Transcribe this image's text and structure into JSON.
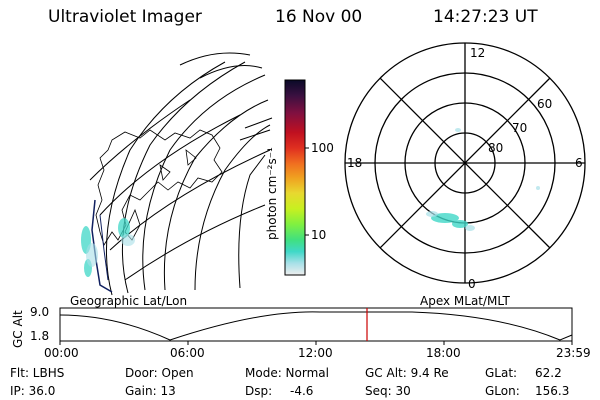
{
  "header": {
    "title": "Ultraviolet Imager",
    "date": "16 Nov 00",
    "time": "14:27:23 UT"
  },
  "geo_map": {
    "caption": "Geographic Lat/Lon"
  },
  "colorbar": {
    "unit_label": "photon cm⁻²s⁻¹",
    "tick_100": "100",
    "tick_10": "10",
    "colors": [
      "#0a0a28",
      "#3a1040",
      "#801040",
      "#c01020",
      "#e03020",
      "#f07020",
      "#f0a020",
      "#e8d830",
      "#c8f020",
      "#80f040",
      "#40e080",
      "#40d8c8",
      "#a8e0e8",
      "#d8ecf0",
      "#eeeeee"
    ]
  },
  "polar_plot": {
    "caption": "Apex MLat/MLT",
    "mlt_12": "12",
    "mlt_18": "18",
    "mlt_6": "6",
    "mlt_0": "0",
    "lat_60": "60",
    "lat_70": "70",
    "lat_80": "80"
  },
  "altitude_strip": {
    "axis_label": "GC Alt",
    "y_max": "9.0",
    "y_min": "1.8",
    "x_ticks": [
      "00:00",
      "06:00",
      "12:00",
      "18:00",
      "23:59"
    ],
    "current_time_color": "#cc0000"
  },
  "info": {
    "flt": "Flt: LBHS",
    "ip": "IP: 36.0",
    "door": "Door: Open",
    "gain": "Gain: 13",
    "mode": "Mode: Normal",
    "dsp_label": "Dsp:",
    "dsp_value": "-4.6",
    "gc_alt": "GC Alt: 9.4 Re",
    "seq": "Seq: 30",
    "glat_label": "GLat:",
    "glat_value": "62.2",
    "glon_label": "GLon:",
    "glon_value": "156.3"
  }
}
